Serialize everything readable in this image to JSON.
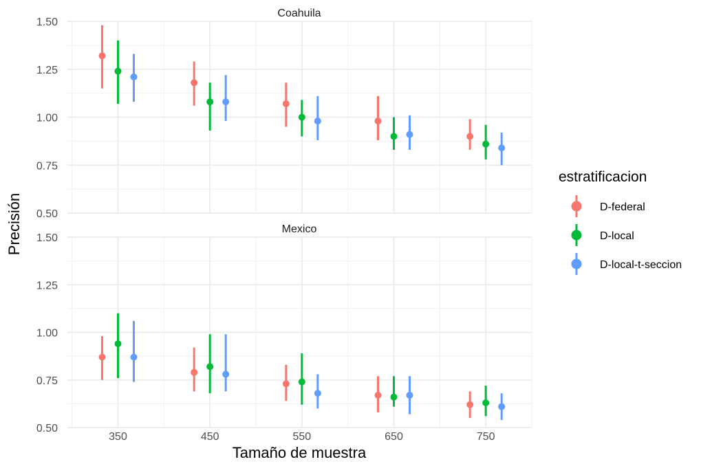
{
  "chart_data": {
    "type": "scatter",
    "xlabel": "Tamaño de muestra",
    "ylabel": "Precisión",
    "x_ticks": [
      "350",
      "450",
      "550",
      "650",
      "750"
    ],
    "x_tick_values": [
      350,
      450,
      550,
      650,
      750
    ],
    "xlim": [
      295,
      800
    ],
    "y_ticks": [
      "0.50",
      "0.75",
      "1.00",
      "1.25",
      "1.50"
    ],
    "y_tick_values": [
      0.5,
      0.75,
      1.0,
      1.25,
      1.5
    ],
    "ylim": [
      0.5,
      1.5
    ],
    "dodge": [
      -23,
      0,
      23
    ],
    "legend": {
      "title": "estratificacion",
      "position": "right",
      "entries": [
        {
          "label": "D-federal",
          "color": "#F8766D"
        },
        {
          "label": "D-local",
          "color": "#00BA38"
        },
        {
          "label": "D-local-t-seccion",
          "color": "#619CFF"
        }
      ]
    },
    "panels": [
      {
        "title": "Coahuila",
        "series": [
          {
            "name": "D-federal",
            "color": "#F8766D",
            "points": [
              {
                "x": 350,
                "y": 1.32,
                "low": 1.15,
                "high": 1.48
              },
              {
                "x": 450,
                "y": 1.18,
                "low": 1.06,
                "high": 1.29
              },
              {
                "x": 550,
                "y": 1.07,
                "low": 0.95,
                "high": 1.18
              },
              {
                "x": 650,
                "y": 0.98,
                "low": 0.88,
                "high": 1.11
              },
              {
                "x": 750,
                "y": 0.9,
                "low": 0.83,
                "high": 0.99
              }
            ]
          },
          {
            "name": "D-local",
            "color": "#00BA38",
            "points": [
              {
                "x": 350,
                "y": 1.24,
                "low": 1.07,
                "high": 1.4
              },
              {
                "x": 450,
                "y": 1.08,
                "low": 0.93,
                "high": 1.18
              },
              {
                "x": 550,
                "y": 1.0,
                "low": 0.9,
                "high": 1.09
              },
              {
                "x": 650,
                "y": 0.9,
                "low": 0.83,
                "high": 1.0
              },
              {
                "x": 750,
                "y": 0.86,
                "low": 0.78,
                "high": 0.96
              }
            ]
          },
          {
            "name": "D-local-t-seccion",
            "color": "#619CFF",
            "points": [
              {
                "x": 350,
                "y": 1.21,
                "low": 1.08,
                "high": 1.33
              },
              {
                "x": 450,
                "y": 1.08,
                "low": 0.98,
                "high": 1.22
              },
              {
                "x": 550,
                "y": 0.98,
                "low": 0.88,
                "high": 1.11
              },
              {
                "x": 650,
                "y": 0.91,
                "low": 0.83,
                "high": 1.01
              },
              {
                "x": 750,
                "y": 0.84,
                "low": 0.75,
                "high": 0.92
              }
            ]
          }
        ]
      },
      {
        "title": "Mexico",
        "series": [
          {
            "name": "D-federal",
            "color": "#F8766D",
            "points": [
              {
                "x": 350,
                "y": 0.87,
                "low": 0.75,
                "high": 0.98
              },
              {
                "x": 450,
                "y": 0.79,
                "low": 0.69,
                "high": 0.92
              },
              {
                "x": 550,
                "y": 0.73,
                "low": 0.64,
                "high": 0.83
              },
              {
                "x": 650,
                "y": 0.67,
                "low": 0.58,
                "high": 0.77
              },
              {
                "x": 750,
                "y": 0.62,
                "low": 0.55,
                "high": 0.69
              }
            ]
          },
          {
            "name": "D-local",
            "color": "#00BA38",
            "points": [
              {
                "x": 350,
                "y": 0.94,
                "low": 0.76,
                "high": 1.1
              },
              {
                "x": 450,
                "y": 0.82,
                "low": 0.68,
                "high": 0.99
              },
              {
                "x": 550,
                "y": 0.74,
                "low": 0.62,
                "high": 0.89
              },
              {
                "x": 650,
                "y": 0.66,
                "low": 0.61,
                "high": 0.77
              },
              {
                "x": 750,
                "y": 0.63,
                "low": 0.56,
                "high": 0.72
              }
            ]
          },
          {
            "name": "D-local-t-seccion",
            "color": "#619CFF",
            "points": [
              {
                "x": 350,
                "y": 0.87,
                "low": 0.74,
                "high": 1.06
              },
              {
                "x": 450,
                "y": 0.78,
                "low": 0.69,
                "high": 0.99
              },
              {
                "x": 550,
                "y": 0.68,
                "low": 0.6,
                "high": 0.78
              },
              {
                "x": 650,
                "y": 0.67,
                "low": 0.57,
                "high": 0.77
              },
              {
                "x": 750,
                "y": 0.61,
                "low": 0.54,
                "high": 0.68
              }
            ]
          }
        ]
      }
    ]
  }
}
